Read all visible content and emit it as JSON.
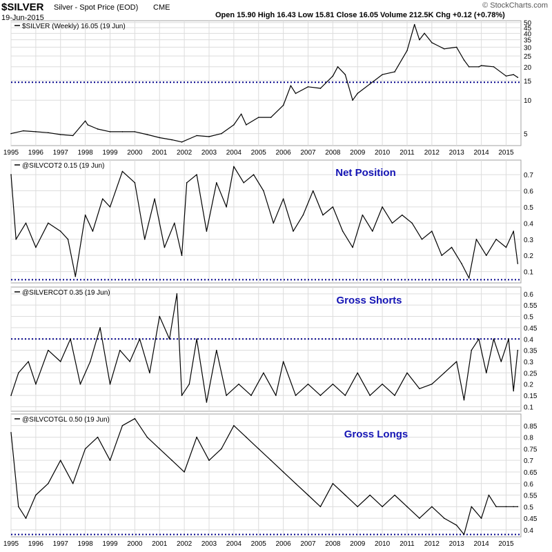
{
  "header": {
    "symbol": "$SILVER",
    "name": "Silver - Spot Price (EOD)",
    "exchange": "CME",
    "date": "19-Jun-2015",
    "ohlc": "Open 15.90  High 16.43  Low 15.81  Close 16.05  Volume 212.5K  Chg +0.12 (+0.78%)",
    "watermark": "© StockCharts.com"
  },
  "colors": {
    "line": "#000000",
    "reference": "#00008b",
    "annotation": "#1414b4",
    "grid": "#dcdcdc",
    "border": "#a0a0a0"
  },
  "chart_data": [
    {
      "type": "line",
      "legend": "$SILVER (Weekly) 16.05 (19 Jun)",
      "scale": "log",
      "x_ticks": [
        "1995",
        "1996",
        "1997",
        "1998",
        "1999",
        "2000",
        "2001",
        "2002",
        "2003",
        "2004",
        "2005",
        "2006",
        "2007",
        "2008",
        "2009",
        "2010",
        "2011",
        "2012",
        "2013",
        "2014",
        "2015"
      ],
      "y_ticks": [
        5,
        10,
        15,
        20,
        25,
        30,
        35,
        40,
        45,
        50
      ],
      "ylim": [
        3.9,
        52
      ],
      "reference_line": 14.5,
      "series": [
        {
          "x": [
            1995.0,
            1995.5,
            1996.0,
            1996.5,
            1997.0,
            1997.5,
            1998.0,
            1998.1,
            1998.5,
            1999.0,
            1999.5,
            2000.0,
            2000.5,
            2001.0,
            2001.5,
            2001.9,
            2002.5,
            2003.0,
            2003.5,
            2004.0,
            2004.3,
            2004.5,
            2005.0,
            2005.5,
            2006.0,
            2006.3,
            2006.5,
            2007.0,
            2007.5,
            2008.0,
            2008.2,
            2008.5,
            2008.8,
            2009.0,
            2009.5,
            2010.0,
            2010.5,
            2011.0,
            2011.3,
            2011.5,
            2011.7,
            2012.0,
            2012.5,
            2013.0,
            2013.3,
            2013.5,
            2013.9,
            2014.0,
            2014.5,
            2015.0,
            2015.3,
            2015.47
          ],
          "y": [
            5.0,
            5.3,
            5.2,
            5.1,
            4.9,
            4.8,
            6.5,
            6.0,
            5.5,
            5.2,
            5.2,
            5.2,
            4.9,
            4.6,
            4.4,
            4.2,
            4.8,
            4.7,
            5.0,
            6.0,
            7.5,
            6.0,
            7.0,
            7.0,
            9.0,
            13.5,
            11.5,
            13.2,
            12.8,
            16.5,
            20.0,
            17.0,
            10.0,
            11.5,
            14.0,
            17.0,
            18.0,
            28.0,
            48.0,
            35.0,
            40.0,
            33.0,
            29.0,
            30.0,
            23.0,
            20.0,
            20.0,
            20.5,
            20.0,
            16.5,
            17.0,
            16.05
          ]
        }
      ]
    },
    {
      "type": "line",
      "legend": "@SILVCOT2 0.15 (19 Jun)",
      "annotation": "Net Position",
      "scale": "linear",
      "y_ticks": [
        0.1,
        0.2,
        0.3,
        0.4,
        0.5,
        0.6,
        0.7
      ],
      "ylim": [
        0.03,
        0.79
      ],
      "reference_line": 0.05,
      "series": [
        {
          "x": [
            1995.0,
            1995.2,
            1995.6,
            1996.0,
            1996.5,
            1997.0,
            1997.3,
            1997.6,
            1998.0,
            1998.3,
            1998.7,
            1999.0,
            1999.5,
            2000.0,
            2000.4,
            2000.8,
            2001.2,
            2001.6,
            2001.9,
            2002.1,
            2002.5,
            2002.9,
            2003.3,
            2003.7,
            2004.0,
            2004.4,
            2004.8,
            2005.2,
            2005.6,
            2006.0,
            2006.4,
            2006.8,
            2007.2,
            2007.6,
            2008.0,
            2008.4,
            2008.8,
            2009.2,
            2009.6,
            2010.0,
            2010.4,
            2010.8,
            2011.2,
            2011.6,
            2012.0,
            2012.4,
            2012.8,
            2013.2,
            2013.5,
            2013.8,
            2014.2,
            2014.6,
            2015.0,
            2015.3,
            2015.47
          ],
          "y": [
            0.7,
            0.3,
            0.4,
            0.25,
            0.4,
            0.35,
            0.3,
            0.07,
            0.45,
            0.35,
            0.55,
            0.5,
            0.72,
            0.65,
            0.3,
            0.55,
            0.25,
            0.4,
            0.2,
            0.65,
            0.7,
            0.35,
            0.65,
            0.5,
            0.75,
            0.65,
            0.7,
            0.6,
            0.4,
            0.55,
            0.35,
            0.45,
            0.6,
            0.45,
            0.5,
            0.35,
            0.25,
            0.45,
            0.35,
            0.5,
            0.4,
            0.45,
            0.4,
            0.3,
            0.35,
            0.2,
            0.25,
            0.15,
            0.06,
            0.3,
            0.2,
            0.3,
            0.25,
            0.35,
            0.15
          ]
        }
      ]
    },
    {
      "type": "line",
      "legend": "@SILVERCOT 0.35 (19 Jun)",
      "annotation": "Gross Shorts",
      "scale": "linear",
      "y_ticks": [
        0.1,
        0.15,
        0.2,
        0.25,
        0.3,
        0.35,
        0.4,
        0.45,
        0.5,
        0.55,
        0.6
      ],
      "ylim": [
        0.08,
        0.63
      ],
      "reference_line": 0.4,
      "series": [
        {
          "x": [
            1995.0,
            1995.3,
            1995.7,
            1996.0,
            1996.5,
            1997.0,
            1997.4,
            1997.8,
            1998.2,
            1998.6,
            1999.0,
            1999.4,
            1999.8,
            2000.2,
            2000.6,
            2001.0,
            2001.4,
            2001.7,
            2001.9,
            2002.2,
            2002.5,
            2002.9,
            2003.3,
            2003.7,
            2004.2,
            2004.7,
            2005.2,
            2005.7,
            2006.0,
            2006.5,
            2007.0,
            2007.5,
            2008.0,
            2008.5,
            2009.0,
            2009.5,
            2010.0,
            2010.5,
            2011.0,
            2011.5,
            2012.0,
            2012.5,
            2013.0,
            2013.3,
            2013.6,
            2013.9,
            2014.2,
            2014.5,
            2014.8,
            2015.1,
            2015.3,
            2015.47
          ],
          "y": [
            0.15,
            0.25,
            0.3,
            0.2,
            0.35,
            0.3,
            0.4,
            0.2,
            0.3,
            0.45,
            0.2,
            0.35,
            0.3,
            0.4,
            0.25,
            0.5,
            0.4,
            0.6,
            0.15,
            0.2,
            0.4,
            0.12,
            0.35,
            0.15,
            0.2,
            0.15,
            0.25,
            0.15,
            0.3,
            0.15,
            0.2,
            0.15,
            0.2,
            0.15,
            0.25,
            0.15,
            0.2,
            0.15,
            0.25,
            0.18,
            0.2,
            0.25,
            0.3,
            0.13,
            0.35,
            0.4,
            0.25,
            0.4,
            0.3,
            0.4,
            0.17,
            0.35
          ]
        }
      ]
    },
    {
      "type": "line",
      "legend": "@SILVCOTGL 0.50 (19 Jun)",
      "annotation": "Gross Longs",
      "scale": "linear",
      "x_ticks": [
        "1995",
        "1996",
        "1997",
        "1998",
        "1999",
        "2000",
        "2001",
        "2002",
        "2003",
        "2004",
        "2005",
        "2006",
        "2007",
        "2008",
        "2009",
        "2010",
        "2011",
        "2012",
        "2013",
        "2014",
        "2015"
      ],
      "y_ticks": [
        0.4,
        0.45,
        0.5,
        0.55,
        0.6,
        0.65,
        0.7,
        0.75,
        0.8,
        0.85
      ],
      "ylim": [
        0.37,
        0.9
      ],
      "reference_line": 0.38,
      "series": [
        {
          "x": [
            1995.0,
            1995.3,
            1995.6,
            1996.0,
            1996.5,
            1997.0,
            1997.5,
            1998.0,
            1998.5,
            1999.0,
            1999.5,
            2000.0,
            2000.5,
            2001.0,
            2001.5,
            2002.0,
            2002.5,
            2003.0,
            2003.5,
            2004.0,
            2004.5,
            2005.0,
            2005.5,
            2006.0,
            2006.5,
            2007.0,
            2007.5,
            2008.0,
            2008.5,
            2009.0,
            2009.5,
            2010.0,
            2010.5,
            2011.0,
            2011.5,
            2012.0,
            2012.5,
            2013.0,
            2013.3,
            2013.6,
            2014.0,
            2014.3,
            2014.6,
            2015.0,
            2015.3,
            2015.47
          ],
          "y": [
            0.82,
            0.5,
            0.45,
            0.55,
            0.6,
            0.7,
            0.6,
            0.75,
            0.8,
            0.7,
            0.85,
            0.88,
            0.8,
            0.75,
            0.7,
            0.65,
            0.8,
            0.7,
            0.75,
            0.85,
            0.8,
            0.75,
            0.7,
            0.65,
            0.6,
            0.55,
            0.5,
            0.6,
            0.55,
            0.5,
            0.55,
            0.5,
            0.55,
            0.5,
            0.45,
            0.5,
            0.45,
            0.42,
            0.38,
            0.5,
            0.45,
            0.55,
            0.5,
            0.5,
            0.5,
            0.5
          ]
        }
      ]
    }
  ]
}
